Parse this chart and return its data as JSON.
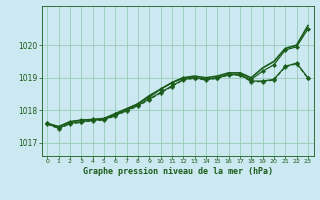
{
  "title": "Graphe pression niveau de la mer (hPa)",
  "background_color": "#cce8f0",
  "grid_color": "#99ccbb",
  "line_color": "#1a5c1a",
  "xlim": [
    -0.5,
    23.5
  ],
  "ylim": [
    1016.6,
    1021.2
  ],
  "yticks": [
    1017,
    1018,
    1019,
    1020
  ],
  "xticks": [
    0,
    1,
    2,
    3,
    4,
    5,
    6,
    7,
    8,
    9,
    10,
    11,
    12,
    13,
    14,
    15,
    16,
    17,
    18,
    19,
    20,
    21,
    22,
    23
  ],
  "series": [
    {
      "x": [
        0,
        1,
        2,
        3,
        4,
        5,
        6,
        7,
        8,
        9,
        10,
        11,
        12,
        13,
        14,
        15,
        16,
        17,
        18,
        19,
        20,
        21,
        22,
        23
      ],
      "y": [
        1017.6,
        1017.5,
        1017.65,
        1017.7,
        1017.72,
        1017.75,
        1017.9,
        1018.05,
        1018.2,
        1018.45,
        1018.65,
        1018.85,
        1019.0,
        1019.05,
        1019.0,
        1019.05,
        1019.15,
        1019.15,
        1019.0,
        1019.3,
        1019.5,
        1019.9,
        1020.0,
        1020.6
      ],
      "linestyle": "solid",
      "marker": null,
      "markersize": 0,
      "linewidth": 1.2
    },
    {
      "x": [
        0,
        1,
        2,
        3,
        4,
        5,
        6,
        7,
        8,
        9,
        10,
        11,
        12,
        13,
        14,
        15,
        16,
        17,
        18,
        19,
        20,
        21,
        22,
        23
      ],
      "y": [
        1017.6,
        1017.45,
        1017.6,
        1017.65,
        1017.7,
        1017.72,
        1017.85,
        1018.0,
        1018.15,
        1018.35,
        1018.55,
        1018.75,
        1018.95,
        1019.0,
        1018.95,
        1019.0,
        1019.1,
        1019.1,
        1018.9,
        1018.9,
        1018.95,
        1019.35,
        1019.45,
        1019.0
      ],
      "linestyle": "solid",
      "marker": "D",
      "markersize": 2.0,
      "linewidth": 0.9
    },
    {
      "x": [
        0,
        1,
        2,
        3,
        4,
        5,
        6,
        7,
        8,
        9,
        10,
        11,
        12,
        13,
        14,
        15,
        16,
        17,
        18,
        19,
        20,
        21,
        22,
        23
      ],
      "y": [
        1017.58,
        1017.44,
        1017.58,
        1017.63,
        1017.68,
        1017.7,
        1017.83,
        1017.98,
        1018.13,
        1018.33,
        1018.53,
        1018.73,
        1018.93,
        1018.98,
        1018.93,
        1018.98,
        1019.08,
        1019.08,
        1018.88,
        1018.88,
        1018.93,
        1019.33,
        1019.43,
        1018.98
      ],
      "linestyle": "dashed",
      "marker": "P",
      "markersize": 2.5,
      "linewidth": 0.8
    },
    {
      "x": [
        0,
        1,
        2,
        3,
        4,
        5,
        6,
        7,
        8,
        9,
        10,
        11,
        12,
        13,
        14,
        15,
        16,
        17,
        18,
        19,
        20,
        21,
        22,
        23
      ],
      "y": [
        1017.6,
        1017.5,
        1017.65,
        1017.7,
        1017.72,
        1017.72,
        1017.88,
        1018.02,
        1018.2,
        1018.4,
        1018.65,
        1018.85,
        1019.0,
        1019.0,
        1018.95,
        1019.0,
        1019.1,
        1019.1,
        1018.95,
        1019.2,
        1019.4,
        1019.85,
        1019.95,
        1020.5
      ],
      "linestyle": "solid",
      "marker": "D",
      "markersize": 2.0,
      "linewidth": 0.9
    }
  ]
}
